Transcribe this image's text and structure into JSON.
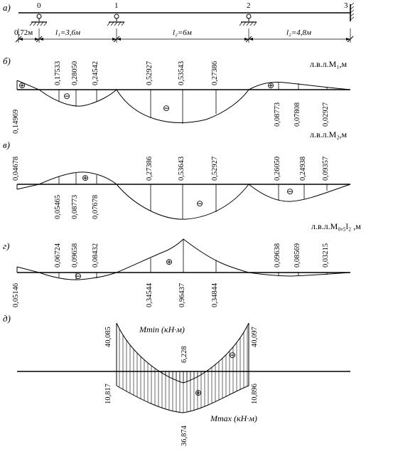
{
  "sections": {
    "a": "a)",
    "b": "б)",
    "c": "в)",
    "d": "г)",
    "e": "д)"
  },
  "beam": {
    "supports": [
      "0",
      "1",
      "2",
      "3"
    ],
    "dim_overhang": "0,72м",
    "spans": [
      "l₁=3,6м",
      "l₂=6м",
      "l₂=4,8м"
    ]
  },
  "influence_lines": [
    {
      "title": "л.в.л.M₁,м",
      "values_above": [
        "0,17533",
        "0,28050",
        "0,24542",
        "0,52927",
        "0,53543",
        "0,27386"
      ],
      "values_below": [
        "0,14969",
        "0,08773",
        "0,07808",
        "0,02927"
      ],
      "signs": [
        "⊕",
        "⊖",
        "⊖",
        "⊕"
      ]
    },
    {
      "title": "л.в.л.M₂,м",
      "values_above": [
        "0,04678",
        "0,27386",
        "0,53643",
        "0,52927",
        "0,26050",
        "0,24938",
        "0,09357"
      ],
      "values_below": [
        "0,05465",
        "0,08773",
        "0,07678"
      ],
      "signs": [
        "⊕",
        "⊖",
        "⊖"
      ]
    },
    {
      "title": "л.в.л.M₀,₅l₂ ,м",
      "values_above": [
        "0,06724",
        "0,09658",
        "0,08432",
        "0,09638",
        "0,08569",
        "0,03215"
      ],
      "values_below": [
        "0,05146",
        "0,34544",
        "0,96437",
        "0,34844"
      ],
      "signs": [
        "⊖",
        "⊕"
      ]
    }
  ],
  "envelope": {
    "m_min_label": "Mmin (кН·м)",
    "m_max_label": "Mmax (кН·м)",
    "values": [
      "40,085",
      "6,228",
      "40,097",
      "10,817",
      "10,896",
      "36,874"
    ],
    "signs": [
      "⊖",
      "⊕"
    ]
  }
}
